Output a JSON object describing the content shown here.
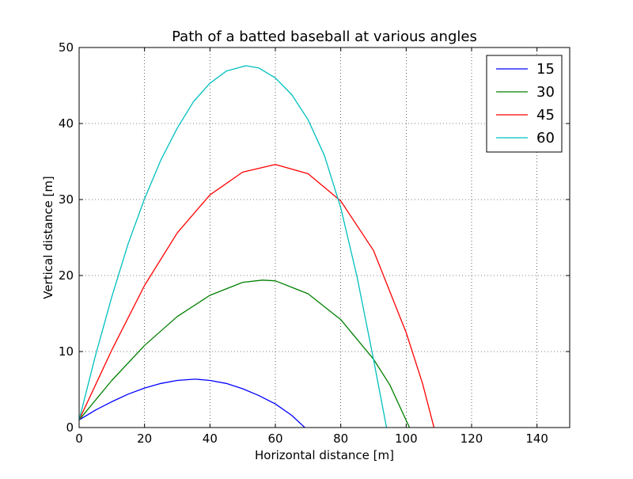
{
  "chart_data": {
    "type": "line",
    "title": "Path of a batted baseball at various angles",
    "xlabel": "Horizontal distance [m]",
    "ylabel": "Vertical distance [m]",
    "xlim": [
      0,
      150
    ],
    "ylim": [
      0,
      50
    ],
    "xticks": [
      0,
      20,
      40,
      60,
      80,
      100,
      120,
      140
    ],
    "yticks": [
      0,
      10,
      20,
      30,
      40,
      50
    ],
    "grid": true,
    "grid_style": "dotted",
    "legend_position": "top-right",
    "series": [
      {
        "name": "15",
        "color": "#0000ff",
        "x": [
          0,
          5,
          10,
          15,
          20,
          25,
          30,
          35,
          36,
          40,
          45,
          50,
          55,
          60,
          65,
          69
        ],
        "y": [
          1,
          2.3,
          3.4,
          4.4,
          5.2,
          5.8,
          6.2,
          6.35,
          6.35,
          6.2,
          5.8,
          5.1,
          4.2,
          3.1,
          1.6,
          0
        ]
      },
      {
        "name": "30",
        "color": "#008000",
        "x": [
          0,
          10,
          20,
          30,
          40,
          50,
          56,
          60,
          70,
          80,
          90,
          95,
          101
        ],
        "y": [
          1,
          6.2,
          10.8,
          14.6,
          17.4,
          19.1,
          19.4,
          19.3,
          17.6,
          14.2,
          9.0,
          5.6,
          0
        ]
      },
      {
        "name": "45",
        "color": "#ff0000",
        "x": [
          0,
          10,
          20,
          30,
          40,
          50,
          60,
          70,
          80,
          90,
          100,
          105,
          108.5
        ],
        "y": [
          1,
          10.2,
          18.7,
          25.6,
          30.6,
          33.6,
          34.6,
          33.4,
          29.8,
          23.3,
          12.5,
          5.8,
          0
        ]
      },
      {
        "name": "60",
        "color": "#00bfbf",
        "x": [
          0,
          5,
          10,
          15,
          20,
          25,
          30,
          35,
          40,
          45,
          51,
          55,
          60,
          65,
          70,
          75,
          80,
          85,
          90,
          94
        ],
        "y": [
          1,
          9.5,
          17.2,
          24.2,
          30.1,
          35.2,
          39.4,
          42.9,
          45.3,
          46.9,
          47.6,
          47.3,
          46.0,
          43.8,
          40.5,
          35.8,
          28.9,
          19.8,
          9.0,
          0
        ]
      }
    ]
  }
}
